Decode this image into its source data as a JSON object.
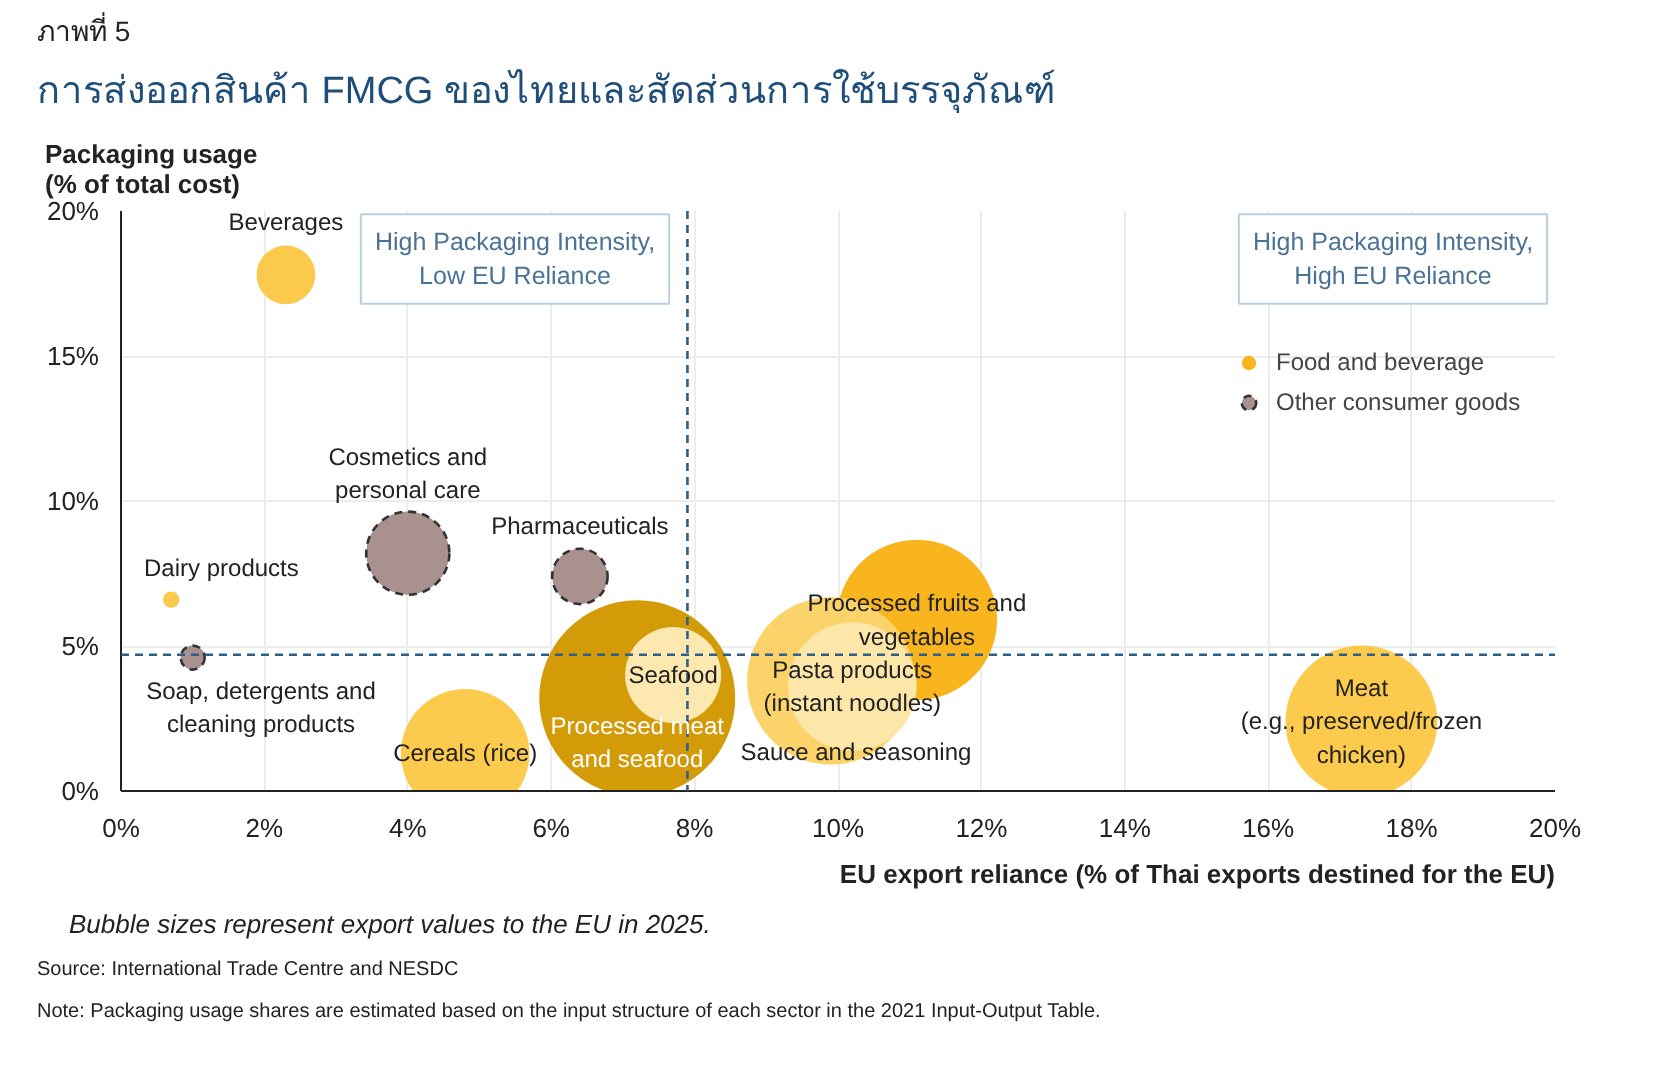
{
  "chart_data": {
    "type": "bubble",
    "title": "การส่งออกสินค้า FMCG ของไทยและสัดส่วนการใช้บรรจุภัณฑ์",
    "xlabel": "EU export reliance (% of Thai exports destined for the EU)",
    "ylabel": "Packaging usage\n(% of total cost)",
    "xlim": [
      0,
      20
    ],
    "ylim": [
      0,
      20
    ],
    "xticks": [
      {
        "value": 0,
        "label": "0%"
      },
      {
        "value": 2,
        "label": "2%"
      },
      {
        "value": 4,
        "label": "4%"
      },
      {
        "value": 6,
        "label": "6%"
      },
      {
        "value": 8,
        "label": "8%"
      },
      {
        "value": 10,
        "label": "10%"
      },
      {
        "value": 12,
        "label": "12%"
      },
      {
        "value": 14,
        "label": "14%"
      },
      {
        "value": 16,
        "label": "16%"
      },
      {
        "value": 18,
        "label": "18%"
      },
      {
        "value": 20,
        "label": "20%"
      }
    ],
    "yticks": [
      {
        "value": 0,
        "label": "0%"
      },
      {
        "value": 5,
        "label": "5%"
      },
      {
        "value": 10,
        "label": "10%"
      },
      {
        "value": 15,
        "label": "15%"
      },
      {
        "value": 20,
        "label": "20%"
      }
    ],
    "grid": true,
    "legend": "top right",
    "marker": "circle",
    "series": [
      {
        "name": "Food and beverage",
        "color": "#f8b51e",
        "line_style": "solid",
        "x": [
          2.3,
          0.7,
          4.8,
          7.2,
          7.7,
          11.1,
          9.9,
          10.2,
          17.3
        ],
        "values": [
          17.8,
          6.6,
          1.3,
          3.2,
          4.0,
          5.9,
          3.8,
          3.6,
          2.4
        ],
        "sizes": [
          0.09,
          0.007,
          0.43,
          1,
          0.24,
          0.67,
          0.73,
          0.43,
          0.6
        ],
        "colors": [
          "#fbc94c",
          "#fbc94c",
          "#fccb4e",
          "#d29b07",
          "#fde9b0",
          "#f8b51e",
          "#fcd26a",
          "#fde7a8",
          "#fccb4e"
        ]
      },
      {
        "name": "Other consumer goods",
        "color": "#a8918f",
        "line_style": "dashed",
        "x": [
          1.0,
          4.0,
          6.4
        ],
        "values": [
          4.6,
          8.2,
          7.4
        ],
        "sizes": [
          0.015,
          0.18,
          0.08
        ]
      }
    ],
    "ref_lines": [
      {
        "axis": "x",
        "value": 7.9,
        "color": "#2e5f8a",
        "line_style": "dashed"
      },
      {
        "axis": "y",
        "value": 4.7,
        "color": "#2e5f8a",
        "line_style": "dashed"
      }
    ],
    "annotations": [
      "ภาพที่ 5",
      "High Packaging Intensity,\nLow EU Reliance",
      "High Packaging Intensity,\nHigh EU Reliance",
      "Bubble sizes represent export values to the EU in 2025.",
      "Source: International Trade Centre and NESDC",
      "Note: Packaging usage shares are estimated based on the input structure of each sector in the 2021 Input-Output Table.",
      {
        "text": "Beverages",
        "x": 2.3,
        "y": 17.8
      },
      {
        "text": "Dairy products",
        "x": 0.7,
        "y": 6.6
      },
      {
        "text": "Soap, detergents and\ncleaning products",
        "x": 1.0,
        "y": 4.6
      },
      {
        "text": "Cosmetics and\npersonal care",
        "x": 4.0,
        "y": 8.2
      },
      {
        "text": "Pharmaceuticals",
        "x": 6.4,
        "y": 7.4
      },
      {
        "text": "Cereals (rice)",
        "x": 4.8,
        "y": 1.3
      },
      {
        "text": "Seafood",
        "x": 7.7,
        "y": 4.0
      },
      {
        "text": "Processed meat\nand seafood",
        "x": 7.2,
        "y": 3.2
      },
      {
        "text": "Processed fruits and\nvegetables",
        "x": 11.1,
        "y": 5.9
      },
      {
        "text": "Pasta products\n(instant noodles)",
        "x": 10.2,
        "y": 3.6
      },
      {
        "text": "Sauce and seasoning",
        "x": 9.9,
        "y": 3.8
      },
      {
        "text": "Meat\n(e.g., preserved/frozen\nchicken)",
        "x": 17.3,
        "y": 2.4
      }
    ]
  }
}
